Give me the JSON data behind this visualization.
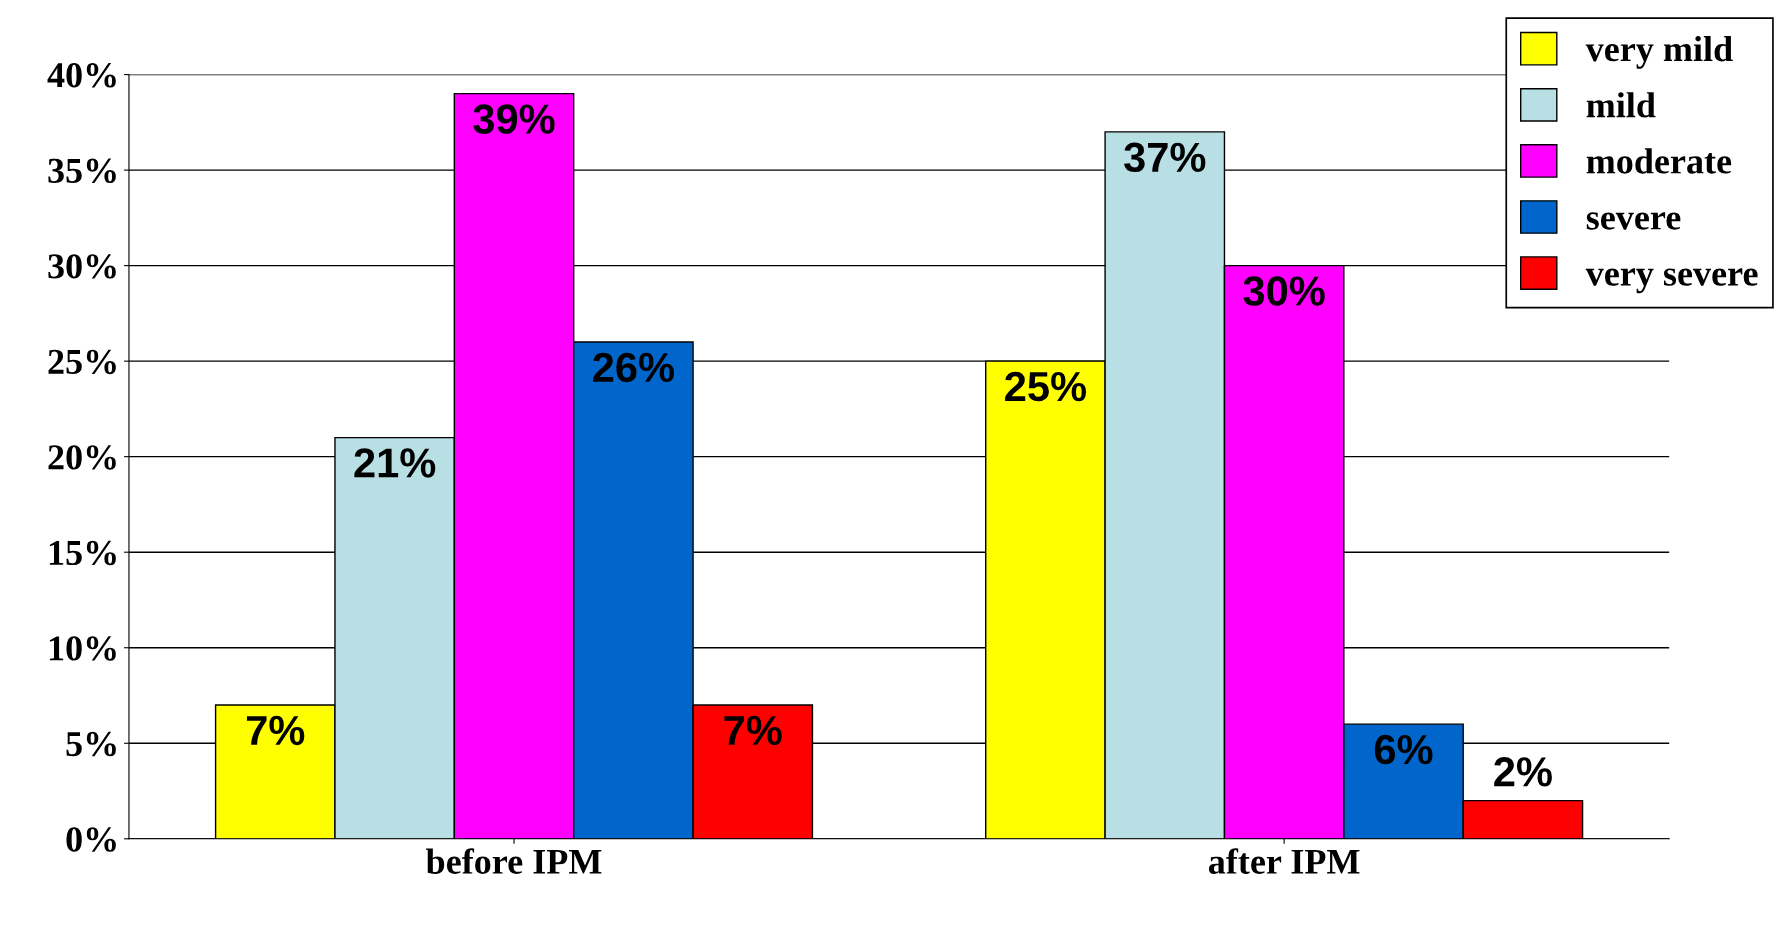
{
  "chart_data": {
    "type": "bar",
    "categories": [
      "before IPM",
      "after IPM"
    ],
    "series": [
      {
        "name": "very mild",
        "color": "#ffff00",
        "values": [
          7,
          25
        ],
        "value_labels": [
          "7%",
          "25%"
        ]
      },
      {
        "name": "mild",
        "color": "#b8e0e4",
        "values": [
          21,
          37
        ],
        "value_labels": [
          "21%",
          "37%"
        ]
      },
      {
        "name": "moderate",
        "color": "#ff00ff",
        "values": [
          39,
          30
        ],
        "value_labels": [
          "39%",
          "30%"
        ]
      },
      {
        "name": "severe",
        "color": "#0066cc",
        "values": [
          26,
          6
        ],
        "value_labels": [
          "26%",
          "6%"
        ]
      },
      {
        "name": "very severe",
        "color": "#ff0000",
        "values": [
          7,
          2
        ],
        "value_labels": [
          "7%",
          "2%"
        ]
      }
    ],
    "ylim": [
      0,
      40
    ],
    "yticks": [
      {
        "value": 0,
        "label": "0%"
      },
      {
        "value": 5,
        "label": "5%"
      },
      {
        "value": 10,
        "label": "10%"
      },
      {
        "value": 15,
        "label": "15%"
      },
      {
        "value": 20,
        "label": "20%"
      },
      {
        "value": 25,
        "label": "25%"
      },
      {
        "value": 30,
        "label": "30%"
      },
      {
        "value": 35,
        "label": "35%"
      },
      {
        "value": 40,
        "label": "40%"
      }
    ],
    "grid": "y",
    "legend": "top right"
  }
}
